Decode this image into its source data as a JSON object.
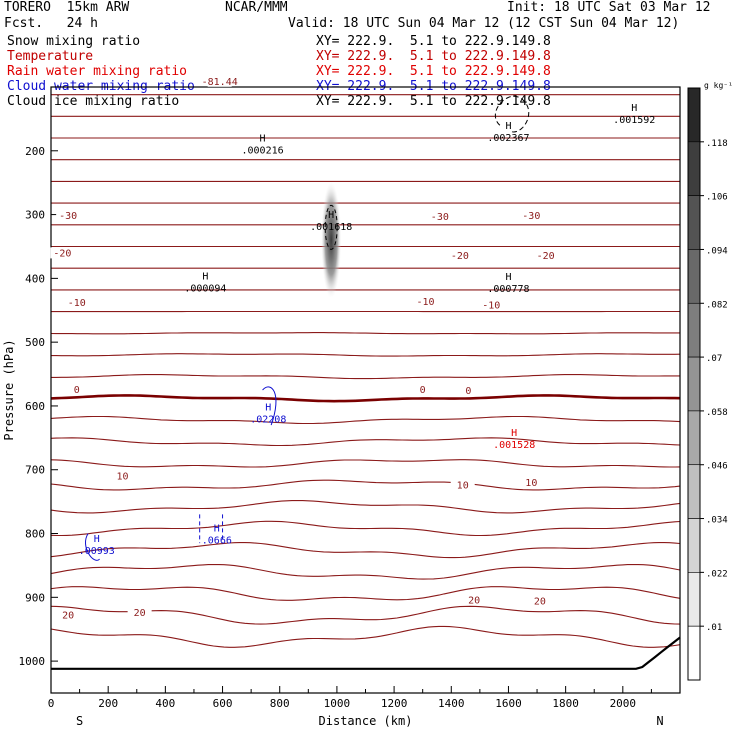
{
  "header": {
    "model": "TORERO  15km ARW",
    "center": "NCAR/MMM",
    "init": "Init: 18 UTC Sat 03 Mar 12",
    "fcst": "Fcst.   24 h",
    "valid": "Valid: 18 UTC Sun 04 Mar 12 (12 CST Sun 04 Mar 12)"
  },
  "legend": [
    {
      "name": "Snow mixing ratio",
      "xy": "XY= 222.9.  5.1 to 222.9.149.8",
      "color": "#000000"
    },
    {
      "name": "Temperature",
      "xy": "XY= 222.9.  5.1 to 222.9.149.8",
      "color": "#c00000"
    },
    {
      "name": "Rain water mixing ratio",
      "xy": "XY= 222.9.  5.1 to 222.9.149.8",
      "color": "#e00000"
    },
    {
      "name": "Cloud water mixing ratio",
      "xy": "XY= 222.9.  5.1 to 222.9.149.8",
      "color": "#1010d0"
    },
    {
      "name": "Cloud ice mixing ratio",
      "xy": "XY= 222.9.  5.1 to 222.9.149.8",
      "color": "#000000"
    }
  ],
  "chart_data": {
    "type": "cross-section",
    "xlabel": "Distance (km)",
    "ylabel": "Pressure (hPa)",
    "xlim": [
      0,
      2200
    ],
    "ylim": [
      1050,
      100
    ],
    "x_ticks": [
      0,
      200,
      400,
      600,
      800,
      1000,
      1200,
      1400,
      1600,
      1800,
      2000
    ],
    "y_ticks": [
      200,
      300,
      400,
      500,
      600,
      700,
      800,
      900,
      1000
    ],
    "y_tick_labels": [
      "200",
      "300",
      "400",
      "500",
      "600",
      "700",
      "800",
      "900",
      "1000"
    ],
    "endpoints": {
      "left": "S",
      "right": "N"
    },
    "colorbar": {
      "units": "g kg⁻¹",
      "labels": [
        ".01",
        ".022",
        ".034",
        ".046",
        ".058",
        ".07",
        ".082",
        ".094",
        ".106",
        ".118"
      ]
    },
    "temperature_isotherm_labels": [
      {
        "x": 590,
        "p": 95,
        "text": "-81.44"
      },
      {
        "x": 60,
        "p": 305,
        "text": "-30"
      },
      {
        "x": 1360,
        "p": 307,
        "text": "-30"
      },
      {
        "x": 1680,
        "p": 305,
        "text": "-30"
      },
      {
        "x": 40,
        "p": 364,
        "text": "-20"
      },
      {
        "x": 1430,
        "p": 368,
        "text": "-20"
      },
      {
        "x": 1730,
        "p": 368,
        "text": "-20"
      },
      {
        "x": 90,
        "p": 442,
        "text": "-10"
      },
      {
        "x": 1310,
        "p": 440,
        "text": "-10"
      },
      {
        "x": 1540,
        "p": 446,
        "text": "-10"
      },
      {
        "x": 90,
        "p": 578,
        "text": "0"
      },
      {
        "x": 1300,
        "p": 578,
        "text": "0"
      },
      {
        "x": 1460,
        "p": 580,
        "text": "0"
      },
      {
        "x": 250,
        "p": 714,
        "text": "10"
      },
      {
        "x": 1440,
        "p": 728,
        "text": "10"
      },
      {
        "x": 1680,
        "p": 724,
        "text": "10"
      },
      {
        "x": 60,
        "p": 932,
        "text": "20"
      },
      {
        "x": 310,
        "p": 928,
        "text": "20"
      },
      {
        "x": 1480,
        "p": 908,
        "text": "20"
      },
      {
        "x": 1710,
        "p": 910,
        "text": "20"
      }
    ],
    "maxima_labels": [
      {
        "x": 2040,
        "p": 150,
        "text": ".001592",
        "field": "Cloud ice mixing ratio",
        "color": "#000000"
      },
      {
        "x": 1600,
        "p": 178,
        "text": ".002367",
        "field": "Cloud ice mixing ratio",
        "color": "#000000"
      },
      {
        "x": 740,
        "p": 198,
        "text": ".000216",
        "field": "Cloud ice mixing ratio",
        "color": "#000000"
      },
      {
        "x": 980,
        "p": 318,
        "text": ".001618",
        "field": "Snow mixing ratio",
        "color": "#000000"
      },
      {
        "x": 540,
        "p": 414,
        "text": ".000094",
        "field": "Cloud ice mixing ratio",
        "color": "#000000"
      },
      {
        "x": 1600,
        "p": 415,
        "text": ".000778",
        "field": "Cloud ice mixing ratio",
        "color": "#000000"
      },
      {
        "x": 760,
        "p": 620,
        "text": ".02208",
        "field": "Cloud water mixing ratio",
        "color": "#1010d0"
      },
      {
        "x": 1620,
        "p": 660,
        "text": ".001528",
        "field": "Rain water mixing ratio",
        "color": "#e00000"
      },
      {
        "x": 580,
        "p": 809,
        "text": ".0666",
        "field": "Cloud water mixing ratio",
        "color": "#1010d0"
      },
      {
        "x": 160,
        "p": 826,
        "text": ".00993",
        "field": "Cloud water mixing ratio",
        "color": "#1010d0"
      }
    ]
  }
}
